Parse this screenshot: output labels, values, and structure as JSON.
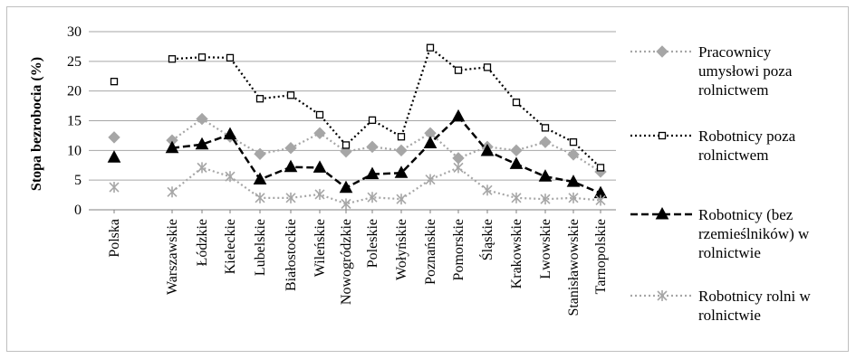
{
  "chart_data": {
    "type": "line",
    "ylabel": "Stopa bezrobocia (%)",
    "xlabel": "",
    "ylim": [
      0,
      30
    ],
    "yticks": [
      0,
      5,
      10,
      15,
      20,
      25,
      30
    ],
    "grid": true,
    "legend_position": "right",
    "categories": [
      "Polska",
      "Warszawskie",
      "Łódzkie",
      "Kieleckie",
      "Lubelskie",
      "Białostockie",
      "Wileńskie",
      "Nowogródzkie",
      "Poleskie",
      "Wołyńskie",
      "Poznańskie",
      "Pomorskie",
      "Śląskie",
      "Krakowskie",
      "Lwowskie",
      "Stanisławowskie",
      "Tarnopolskie"
    ],
    "series": [
      {
        "name": "Pracownicy umysłowi poza rolnictwem",
        "legend_lines": [
          "Pracownicy",
          "umysłowi poza",
          "rolnictwem"
        ],
        "color": "#a6a6a6",
        "marker": "diamond",
        "dash": "dotted",
        "values": [
          12.2,
          11.7,
          15.3,
          12.3,
          9.4,
          10.4,
          12.9,
          9.8,
          10.6,
          10.0,
          12.9,
          8.7,
          10.6,
          10.0,
          11.4,
          9.3,
          6.4
        ]
      },
      {
        "name": "Robotnicy poza rolnictwem",
        "legend_lines": [
          "Robotnicy poza",
          "rolnictwem"
        ],
        "color": "#000000",
        "marker": "square",
        "dash": "dotted",
        "values": [
          21.6,
          25.4,
          25.7,
          25.6,
          18.7,
          19.3,
          16.0,
          10.9,
          15.1,
          12.3,
          27.3,
          23.5,
          24.0,
          18.1,
          13.8,
          11.4,
          7.1
        ]
      },
      {
        "name": "Robotnicy (bez rzemieślników) w rolnictwie",
        "legend_lines": [
          "Robotnicy (bez",
          "rzemieślników) w",
          "rolnictwie"
        ],
        "color": "#000000",
        "marker": "triangle",
        "dash": "dashed",
        "values": [
          8.8,
          10.4,
          11.0,
          12.7,
          5.1,
          7.2,
          7.1,
          3.7,
          6.0,
          6.2,
          11.2,
          15.7,
          9.9,
          7.7,
          5.6,
          4.7,
          2.8
        ]
      },
      {
        "name": "Robotnicy rolni w rolnictwie",
        "legend_lines": [
          "Robotnicy rolni w",
          "rolnictwie"
        ],
        "color": "#a6a6a6",
        "marker": "asterisk",
        "dash": "dotted",
        "values": [
          3.8,
          3.0,
          7.1,
          5.6,
          2.0,
          2.0,
          2.6,
          1.0,
          2.1,
          1.8,
          5.1,
          7.1,
          3.3,
          2.0,
          1.8,
          2.0,
          1.6
        ]
      }
    ]
  }
}
